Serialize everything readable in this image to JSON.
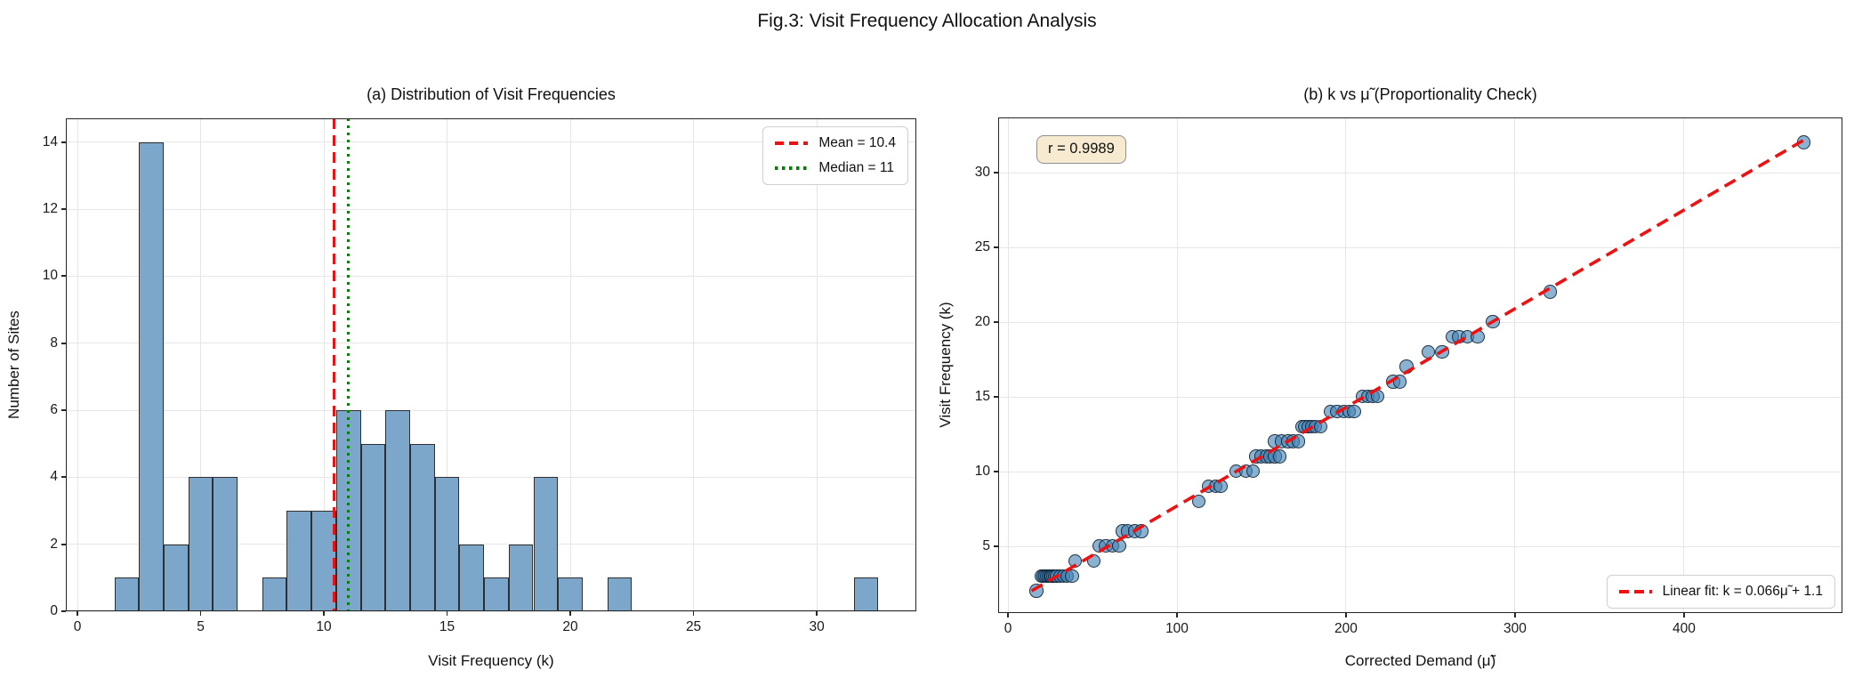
{
  "figure_title": "Fig.3: Visit Frequency Allocation Analysis",
  "chart_data": [
    {
      "type": "bar",
      "title": "(a) Distribution of Visit Frequencies",
      "xlabel": "Visit Frequency (k)",
      "ylabel": "Number of Sites",
      "xlim": [
        -0.47,
        34.04
      ],
      "ylim": [
        0,
        14.71
      ],
      "xticks": [
        0,
        5,
        10,
        15,
        20,
        25,
        30
      ],
      "yticks": [
        0,
        2,
        4,
        6,
        8,
        10,
        12,
        14
      ],
      "grid": true,
      "bin_width": 1,
      "bin_centers": [
        2,
        3,
        4,
        5,
        6,
        7,
        8,
        9,
        10,
        11,
        12,
        13,
        14,
        15,
        16,
        17,
        18,
        19,
        20,
        21,
        22,
        23,
        24,
        25,
        26,
        27,
        28,
        29,
        30,
        31,
        32
      ],
      "counts": [
        1,
        14,
        2,
        4,
        4,
        0,
        1,
        3,
        3,
        6,
        5,
        6,
        5,
        4,
        2,
        1,
        2,
        4,
        1,
        0,
        1,
        0,
        0,
        0,
        0,
        0,
        0,
        0,
        0,
        0,
        1
      ],
      "total_sites": 70,
      "mean": 10.4,
      "median": 11,
      "mean_line": {
        "label": "Mean = 10.4",
        "x": 10.4,
        "color": "#ee1111",
        "style": "dashed"
      },
      "median_line": {
        "label": "Median = 11",
        "x": 11,
        "color": "#008000",
        "style": "dotted"
      },
      "bar_color": "#7da7ca",
      "bar_edge": "#2f2f2f",
      "legend_position": "upper right"
    },
    {
      "type": "scatter",
      "title": "(b) k vs μ̃ (Proportionality Check)",
      "xlabel": "Corrected Demand (μ̃)",
      "ylabel": "Visit Frequency (k)",
      "xlim": [
        -5.8,
        493.7
      ],
      "ylim": [
        0.54,
        33.69
      ],
      "xticks": [
        0,
        100,
        200,
        300,
        400
      ],
      "yticks": [
        5,
        10,
        15,
        20,
        25,
        30
      ],
      "grid": true,
      "points": [
        [
          17,
          2
        ],
        [
          20,
          3
        ],
        [
          21,
          3
        ],
        [
          22,
          3
        ],
        [
          23,
          3
        ],
        [
          24,
          3
        ],
        [
          25,
          3
        ],
        [
          26,
          3
        ],
        [
          27,
          3
        ],
        [
          28,
          3
        ],
        [
          29,
          3
        ],
        [
          31,
          3
        ],
        [
          33,
          3
        ],
        [
          35,
          3
        ],
        [
          38,
          3
        ],
        [
          40,
          4
        ],
        [
          51,
          4
        ],
        [
          54,
          5
        ],
        [
          58,
          5
        ],
        [
          62,
          5
        ],
        [
          66,
          5
        ],
        [
          68,
          6
        ],
        [
          71,
          6
        ],
        [
          75,
          6
        ],
        [
          79,
          6
        ],
        [
          113,
          8
        ],
        [
          119,
          9
        ],
        [
          123,
          9
        ],
        [
          126,
          9
        ],
        [
          135,
          10
        ],
        [
          141,
          10
        ],
        [
          145,
          10
        ],
        [
          147,
          11
        ],
        [
          150,
          11
        ],
        [
          153,
          11
        ],
        [
          155,
          11
        ],
        [
          158,
          11
        ],
        [
          161,
          11
        ],
        [
          158,
          12
        ],
        [
          162,
          12
        ],
        [
          166,
          12
        ],
        [
          169,
          12
        ],
        [
          172,
          12
        ],
        [
          174,
          13
        ],
        [
          176,
          13
        ],
        [
          178,
          13
        ],
        [
          180,
          13
        ],
        [
          182,
          13
        ],
        [
          185,
          13
        ],
        [
          191,
          14
        ],
        [
          195,
          14
        ],
        [
          199,
          14
        ],
        [
          202,
          14
        ],
        [
          205,
          14
        ],
        [
          210,
          15
        ],
        [
          213,
          15
        ],
        [
          216,
          15
        ],
        [
          219,
          15
        ],
        [
          228,
          16
        ],
        [
          232,
          16
        ],
        [
          236,
          17
        ],
        [
          249,
          18
        ],
        [
          257,
          18
        ],
        [
          263,
          19
        ],
        [
          267,
          19
        ],
        [
          272,
          19
        ],
        [
          278,
          19
        ],
        [
          287,
          20
        ],
        [
          321,
          22
        ],
        [
          471,
          32
        ]
      ],
      "point_color": "#4682b4",
      "point_alpha": 0.62,
      "point_edge": "rgba(12,28,44,0.85)",
      "fit": {
        "label": "Linear fit: k = 0.066μ̃ + 1.1",
        "slope": 0.066,
        "intercept": 1.1,
        "x_start": 14,
        "x_end": 471,
        "color": "#ee1111",
        "style": "dashed"
      },
      "annotation": {
        "text": "r = 0.9989",
        "bg": "#f6ead0",
        "border": "#8f8f8f"
      },
      "correlation_r": 0.9989,
      "legend_position": "lower right"
    }
  ]
}
